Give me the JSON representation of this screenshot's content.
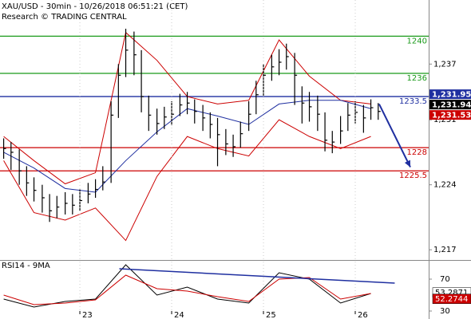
{
  "chart_data": [
    {
      "type": "ohlc",
      "title": "XAU/USD - 30min - 10/26/2018 06:51:21 (CET)",
      "subtitle": "Research © TRADING CENTRAL",
      "color": "#000000",
      "x": [
        22.17,
        22.25,
        22.34,
        22.42,
        22.5,
        22.59,
        22.67,
        22.75,
        22.84,
        22.92,
        23,
        23.09,
        23.17,
        23.25,
        23.34,
        23.42,
        23.5,
        23.59,
        23.67,
        23.75,
        23.84,
        23.92,
        24,
        24.09,
        24.17,
        24.25,
        24.34,
        24.42,
        24.5,
        24.59,
        24.67,
        24.75,
        24.84,
        24.92,
        25,
        25.09,
        25.17,
        25.25,
        25.34,
        25.42,
        25.5,
        25.59,
        25.67,
        25.75,
        25.84,
        25.92,
        26,
        26.09,
        26.17,
        26.25
      ],
      "high": [
        1229,
        1228.6,
        1227.8,
        1226,
        1224.8,
        1224,
        1223,
        1222.8,
        1223.2,
        1223,
        1223.5,
        1224.2,
        1224.6,
        1226,
        1233,
        1237,
        1240.8,
        1240.5,
        1238.5,
        1233.6,
        1232.2,
        1232.4,
        1233,
        1233.8,
        1234,
        1233.2,
        1232.6,
        1231.8,
        1231.2,
        1230,
        1229.4,
        1230.8,
        1233,
        1235.2,
        1237,
        1238,
        1238.6,
        1239.2,
        1238.2,
        1234.6,
        1234,
        1233.6,
        1231.8,
        1229.8,
        1231.4,
        1232.8,
        1233,
        1232.6,
        1233.2,
        1232.8
      ],
      "low": [
        1226.8,
        1225.6,
        1224,
        1222.8,
        1222.2,
        1221,
        1220,
        1220.4,
        1220.8,
        1220.8,
        1221.2,
        1222,
        1222.6,
        1223.4,
        1224.2,
        1231.2,
        1235.6,
        1235.8,
        1231.8,
        1229.8,
        1229.4,
        1230,
        1230.4,
        1231.4,
        1231.6,
        1230.6,
        1229.8,
        1229,
        1226,
        1227.2,
        1227,
        1228,
        1229.8,
        1231.6,
        1233.6,
        1235.2,
        1235.8,
        1236.4,
        1232.6,
        1230.6,
        1230.8,
        1229.8,
        1227.6,
        1227.4,
        1228.4,
        1229.8,
        1230.6,
        1229.6,
        1231,
        1231
      ],
      "close": [
        1227.9,
        1227.5,
        1225.5,
        1224.2,
        1223.4,
        1222.6,
        1221.2,
        1221.6,
        1222,
        1221.8,
        1222.3,
        1223,
        1223.5,
        1224.3,
        1231.5,
        1235.8,
        1238.5,
        1238,
        1233.5,
        1231.5,
        1230.6,
        1231.3,
        1231.6,
        1232.6,
        1232.8,
        1231.9,
        1231.2,
        1230.5,
        1229.4,
        1228.4,
        1228.1,
        1229.5,
        1231.6,
        1233.7,
        1235.8,
        1236.7,
        1237.2,
        1237.8,
        1235.8,
        1232.8,
        1232.4,
        1231.6,
        1228.8,
        1228.6,
        1229.8,
        1231.5,
        1231.8,
        1231.2,
        1232.3,
        1231.9
      ],
      "lines": [
        {
          "color": "#cc0000",
          "x": [
            22.17,
            22.5,
            22.84,
            23.17,
            23.5,
            23.84,
            24.17,
            24.5,
            24.84,
            25.17,
            25.5,
            25.84,
            26.17
          ],
          "values": [
            1229.2,
            1226.6,
            1224.1,
            1225.3,
            1240.4,
            1237.4,
            1233.5,
            1232.7,
            1233.1,
            1239.6,
            1235.7,
            1233.1,
            1232.7
          ]
        },
        {
          "color": "#cc0000",
          "x": [
            22.17,
            22.5,
            22.84,
            23.17,
            23.5,
            23.84,
            24.17,
            24.5,
            24.84,
            25.17,
            25.5,
            25.84,
            26.17
          ],
          "values": [
            1226.6,
            1221,
            1220.2,
            1221.5,
            1218,
            1224.9,
            1229.2,
            1227.9,
            1227.1,
            1231,
            1229.2,
            1227.9,
            1229.2
          ]
        },
        {
          "color": "#1f2fa0",
          "x": [
            22.17,
            22.5,
            22.84,
            23.17,
            23.5,
            23.84,
            24.17,
            24.5,
            24.84,
            25.17,
            25.5,
            25.84,
            26.17
          ],
          "values": [
            1227.5,
            1225.8,
            1223.6,
            1223.2,
            1226.6,
            1229.7,
            1232.2,
            1231.4,
            1230.5,
            1232.7,
            1233.1,
            1233.1,
            1232.2
          ]
        }
      ],
      "levels": [
        {
          "value": 1240,
          "color": "#1a9a1a"
        },
        {
          "value": 1236,
          "color": "#1a9a1a"
        },
        {
          "value": 1233.5,
          "color": "#1f2fa0"
        },
        {
          "value": 1228,
          "color": "#cc0000"
        },
        {
          "value": 1225.5,
          "color": "#cc0000"
        }
      ],
      "forecast": {
        "color": "#1f2fa0",
        "x": [
          26.26,
          26.6
        ],
        "y": [
          1232.7,
          1225.9
        ]
      },
      "price_tags": [
        {
          "value": 1231.95,
          "label": "1,231.95",
          "color": "#1f2fa0"
        },
        {
          "value": 1231.94,
          "label": "1,231.94",
          "color": "#000000"
        },
        {
          "value": 1231.53,
          "label": "1,231.53",
          "color": "#cc0000"
        }
      ],
      "xlim": [
        22.13,
        26.8
      ],
      "ylim": [
        1215.9,
        1243.9
      ],
      "yticks": [
        {
          "value": 1237,
          "label": "1,237"
        },
        {
          "value": 1231,
          "label": "1,231"
        },
        {
          "value": 1224,
          "label": "1,224"
        },
        {
          "value": 1217,
          "label": "1,217"
        }
      ]
    },
    {
      "type": "line",
      "title": "RSI14 - 9MA",
      "series": [
        {
          "color": "#000000",
          "x": [
            22.17,
            22.5,
            22.84,
            23.17,
            23.5,
            23.84,
            24.17,
            24.5,
            24.84,
            25.17,
            25.5,
            25.84,
            26.17
          ],
          "values": [
            45,
            35,
            42,
            45,
            88,
            50,
            60,
            45,
            40,
            78,
            70,
            40,
            52
          ]
        },
        {
          "color": "#cc0000",
          "x": [
            22.17,
            22.5,
            22.84,
            23.17,
            23.5,
            23.84,
            24.17,
            24.5,
            24.84,
            25.17,
            25.5,
            25.84,
            26.17
          ],
          "values": [
            50,
            38,
            40,
            44,
            75,
            58,
            55,
            48,
            42,
            70,
            72,
            45,
            52
          ]
        }
      ],
      "trendline": {
        "color": "#1f2fa0",
        "x": [
          23.43,
          26.43
        ],
        "y": [
          83,
          65
        ]
      },
      "value_tags": [
        {
          "value": 53.2871,
          "color": "#ffffff",
          "text_color": "#000000"
        },
        {
          "value": 52.2744,
          "color": "#cc0000",
          "text_color": "#ffffff"
        }
      ],
      "xlim": [
        22.13,
        26.8
      ],
      "ylim": [
        20,
        92
      ],
      "xticks": [
        23,
        24,
        25,
        26
      ],
      "yticks": [
        70,
        30
      ]
    }
  ]
}
